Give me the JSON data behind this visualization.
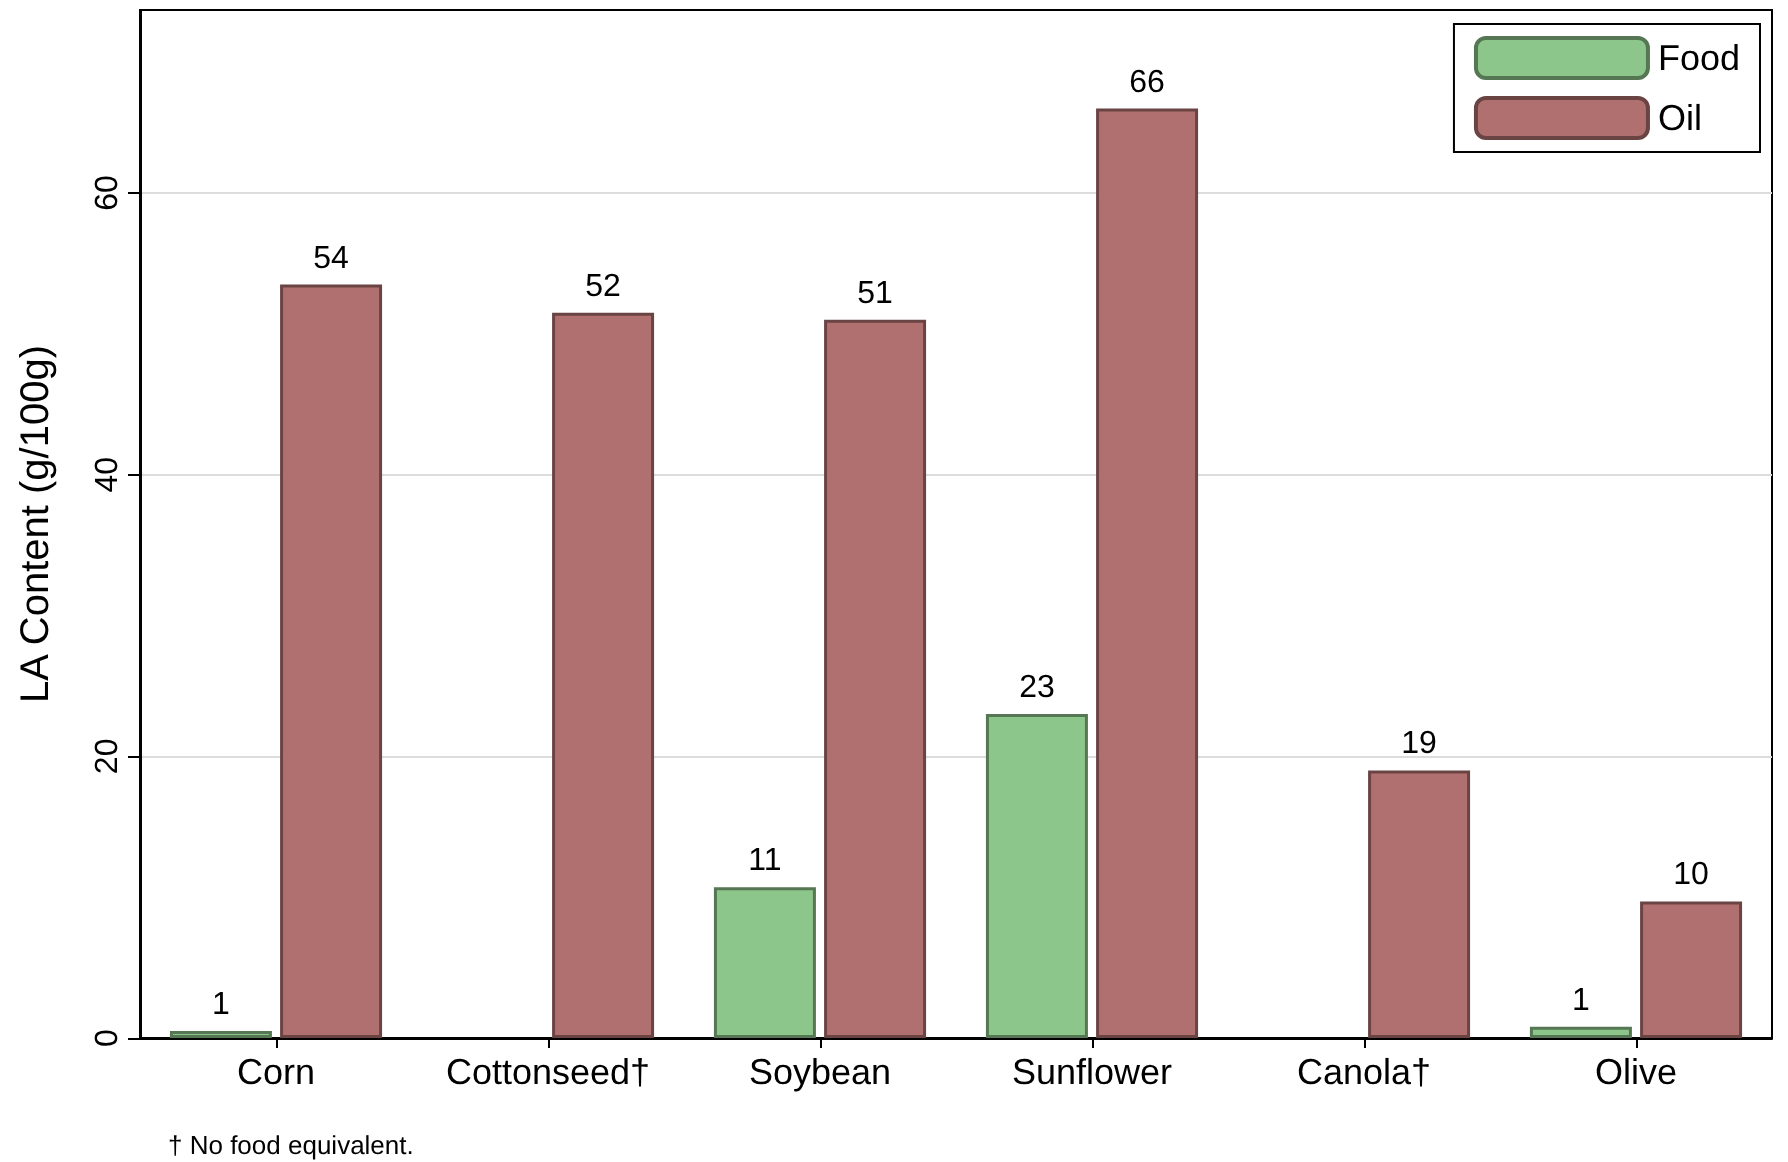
{
  "chart_data": {
    "type": "bar",
    "ylabel": "LA Content (g/100g)",
    "categories": [
      "Corn",
      "Cottonseed†",
      "Soybean",
      "Sunflower",
      "Canola†",
      "Olive"
    ],
    "series": [
      {
        "name": "Food",
        "color": "#8dc68a",
        "values": [
          0.5,
          null,
          10.7,
          23,
          null,
          0.8
        ],
        "value_labels": [
          "1",
          null,
          "11",
          "23",
          null,
          "1"
        ]
      },
      {
        "name": "Oil",
        "color": "#b07070",
        "values": [
          53.5,
          51.5,
          51,
          66,
          19,
          9.7
        ],
        "value_labels": [
          "54",
          "52",
          "51",
          "66",
          "19",
          "10"
        ]
      }
    ],
    "ylim": [
      0,
      73
    ],
    "yticks": [
      0,
      20,
      40,
      60
    ],
    "grid": "y",
    "legend": "top right",
    "annotations": [
      "† No food equivalent."
    ]
  }
}
